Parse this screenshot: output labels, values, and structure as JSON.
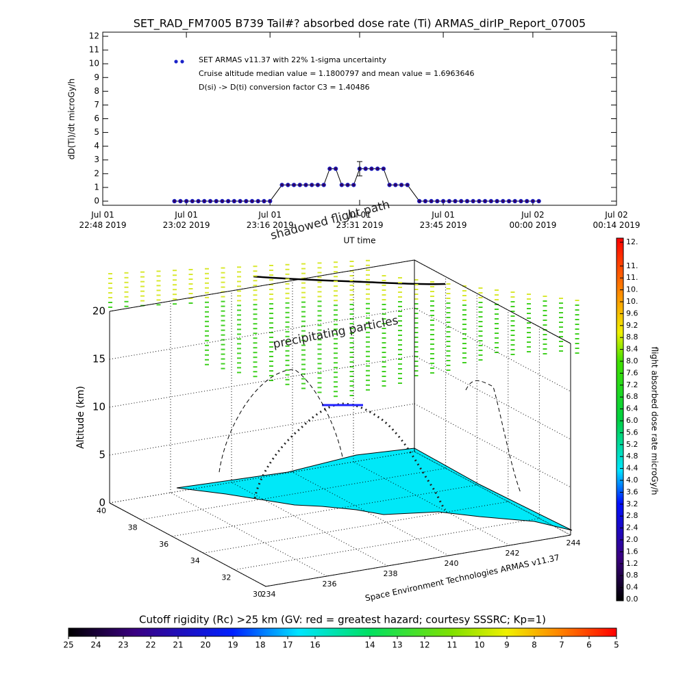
{
  "chart_data": [
    {
      "type": "line",
      "title": "SET_RAD_FM7005  B739 Tail#? absorbed dose rate (Ti) ARMAS_dirIP_Report_07005",
      "y_label": "dD(Ti)/dt microGy/h",
      "x_label": "UT time",
      "annotations": [
        "Cruise altitude median value = 1.1800797 and mean value = 1.6963646",
        "D(si) -> D(ti) conversion factor C3 = 1.40486"
      ],
      "x": [
        "2019-07-01T23:00",
        "2019-07-01T23:01",
        "2019-07-01T23:02",
        "2019-07-01T23:03",
        "2019-07-01T23:04",
        "2019-07-01T23:05",
        "2019-07-01T23:06",
        "2019-07-01T23:07",
        "2019-07-01T23:08",
        "2019-07-01T23:09",
        "2019-07-01T23:10",
        "2019-07-01T23:11",
        "2019-07-01T23:12",
        "2019-07-01T23:13",
        "2019-07-01T23:14",
        "2019-07-01T23:15",
        "2019-07-01T23:16",
        "2019-07-01T23:18",
        "2019-07-01T23:19",
        "2019-07-01T23:20",
        "2019-07-01T23:21",
        "2019-07-01T23:22",
        "2019-07-01T23:23",
        "2019-07-01T23:24",
        "2019-07-01T23:25",
        "2019-07-01T23:26",
        "2019-07-01T23:27",
        "2019-07-01T23:28",
        "2019-07-01T23:29",
        "2019-07-01T23:30",
        "2019-07-01T23:31",
        "2019-07-01T23:32",
        "2019-07-01T23:33",
        "2019-07-01T23:34",
        "2019-07-01T23:35",
        "2019-07-01T23:36",
        "2019-07-01T23:37",
        "2019-07-01T23:38",
        "2019-07-01T23:39",
        "2019-07-01T23:41",
        "2019-07-01T23:42",
        "2019-07-01T23:43",
        "2019-07-01T23:44",
        "2019-07-01T23:45",
        "2019-07-01T23:46",
        "2019-07-01T23:47",
        "2019-07-01T23:48",
        "2019-07-01T23:49",
        "2019-07-01T23:50",
        "2019-07-01T23:51",
        "2019-07-01T23:52",
        "2019-07-01T23:53",
        "2019-07-01T23:54",
        "2019-07-01T23:55",
        "2019-07-01T23:56",
        "2019-07-01T23:57",
        "2019-07-01T23:58",
        "2019-07-01T23:59",
        "2019-07-02T00:00",
        "2019-07-02T00:01"
      ],
      "series": [
        {
          "name": "SET ARMAS v11.37 with 22% 1-sigma uncertainty",
          "color": "#1a22c8",
          "values": [
            0,
            0,
            0,
            0,
            0,
            0,
            0,
            0,
            0,
            0,
            0,
            0,
            0,
            0,
            0,
            0,
            0,
            1.18,
            1.18,
            1.18,
            1.18,
            1.18,
            1.18,
            1.18,
            1.18,
            2.36,
            2.36,
            1.18,
            1.18,
            1.18,
            2.36,
            2.36,
            2.36,
            2.36,
            2.36,
            1.18,
            1.18,
            1.18,
            1.18,
            0,
            0,
            0,
            0,
            0,
            0,
            0,
            0,
            0,
            0,
            0,
            0,
            0,
            0,
            0,
            0,
            0,
            0,
            0,
            0,
            0
          ]
        }
      ],
      "error_bar": {
        "x": "2019-07-01T23:31",
        "value": 2.36,
        "error": 0.52
      },
      "xlim": [
        "2019-07-01T22:48",
        "2019-07-02T00:14"
      ],
      "xticks": [
        {
          "value": "2019-07-01T22:48",
          "label": "Jul 01\n22:48 2019"
        },
        {
          "value": "2019-07-01T23:02",
          "label": "Jul 01\n23:02 2019"
        },
        {
          "value": "2019-07-01T23:16",
          "label": "Jul 01\n23:16 2019"
        },
        {
          "value": "2019-07-01T23:31",
          "label": "Jul 01\n23:31 2019"
        },
        {
          "value": "2019-07-01T23:45",
          "label": "Jul 01\n23:45 2019"
        },
        {
          "value": "2019-07-02T00:00",
          "label": "Jul 02\n00:00 2019"
        },
        {
          "value": "2019-07-02T00:14",
          "label": "Jul 02\n00:14 2019"
        }
      ],
      "ylim": [
        -0.3,
        12.3
      ],
      "yticks": [
        0,
        1,
        2,
        3,
        4,
        5,
        6,
        7,
        8,
        9,
        10,
        11,
        12
      ]
    },
    {
      "type": "surface3d",
      "annotations": [
        "shadowed flight path",
        "precipitating particles",
        "Space Environment Technologies ARMAS v11.37"
      ],
      "z_label": "Altitude (km)",
      "xlim": [
        234,
        244
      ],
      "xticks": [
        234,
        236,
        238,
        240,
        242,
        244
      ],
      "ylim": [
        30,
        40
      ],
      "yticks": [
        30,
        32,
        34,
        36,
        38,
        40
      ],
      "zlim": [
        0,
        20
      ],
      "zticks": [
        0,
        5,
        10,
        15,
        20
      ]
    },
    {
      "type": "colorbar",
      "orientation": "vertical",
      "label": "flight absorbed dose rate microGy/h",
      "ylim": [
        0,
        12
      ],
      "yticks": [
        {
          "value": 0,
          "label": "0.0"
        },
        0.4,
        0.8,
        1.2,
        1.6,
        {
          "value": 2,
          "label": "2.0"
        },
        2.4,
        2.8,
        3.2,
        3.6,
        {
          "value": 4,
          "label": "4.0"
        },
        4.4,
        4.8,
        5.2,
        5.6,
        {
          "value": 6,
          "label": "6.0"
        },
        6.4,
        6.8,
        7.2,
        7.6,
        {
          "value": 8,
          "label": "8.0"
        },
        8.4,
        8.8,
        9.2,
        9.6,
        {
          "value": 10,
          "label": "10."
        },
        {
          "value": 10.4,
          "label": "10."
        },
        {
          "value": 10.8,
          "label": "11."
        },
        {
          "value": 11.2,
          "label": "11."
        },
        {
          "value": 12,
          "label": "12."
        }
      ]
    },
    {
      "type": "colorbar",
      "orientation": "horizontal",
      "label": "Cutoff rigidity (Rc) >25 km (GV: red = greatest hazard; courtesy SSSRC; Kp=1)",
      "xlim": [
        25,
        5
      ],
      "xticks": [
        25,
        24,
        23,
        22,
        21,
        20,
        19,
        18,
        17,
        16,
        14,
        13,
        12,
        11,
        10,
        9,
        8,
        7,
        6,
        5
      ]
    }
  ]
}
